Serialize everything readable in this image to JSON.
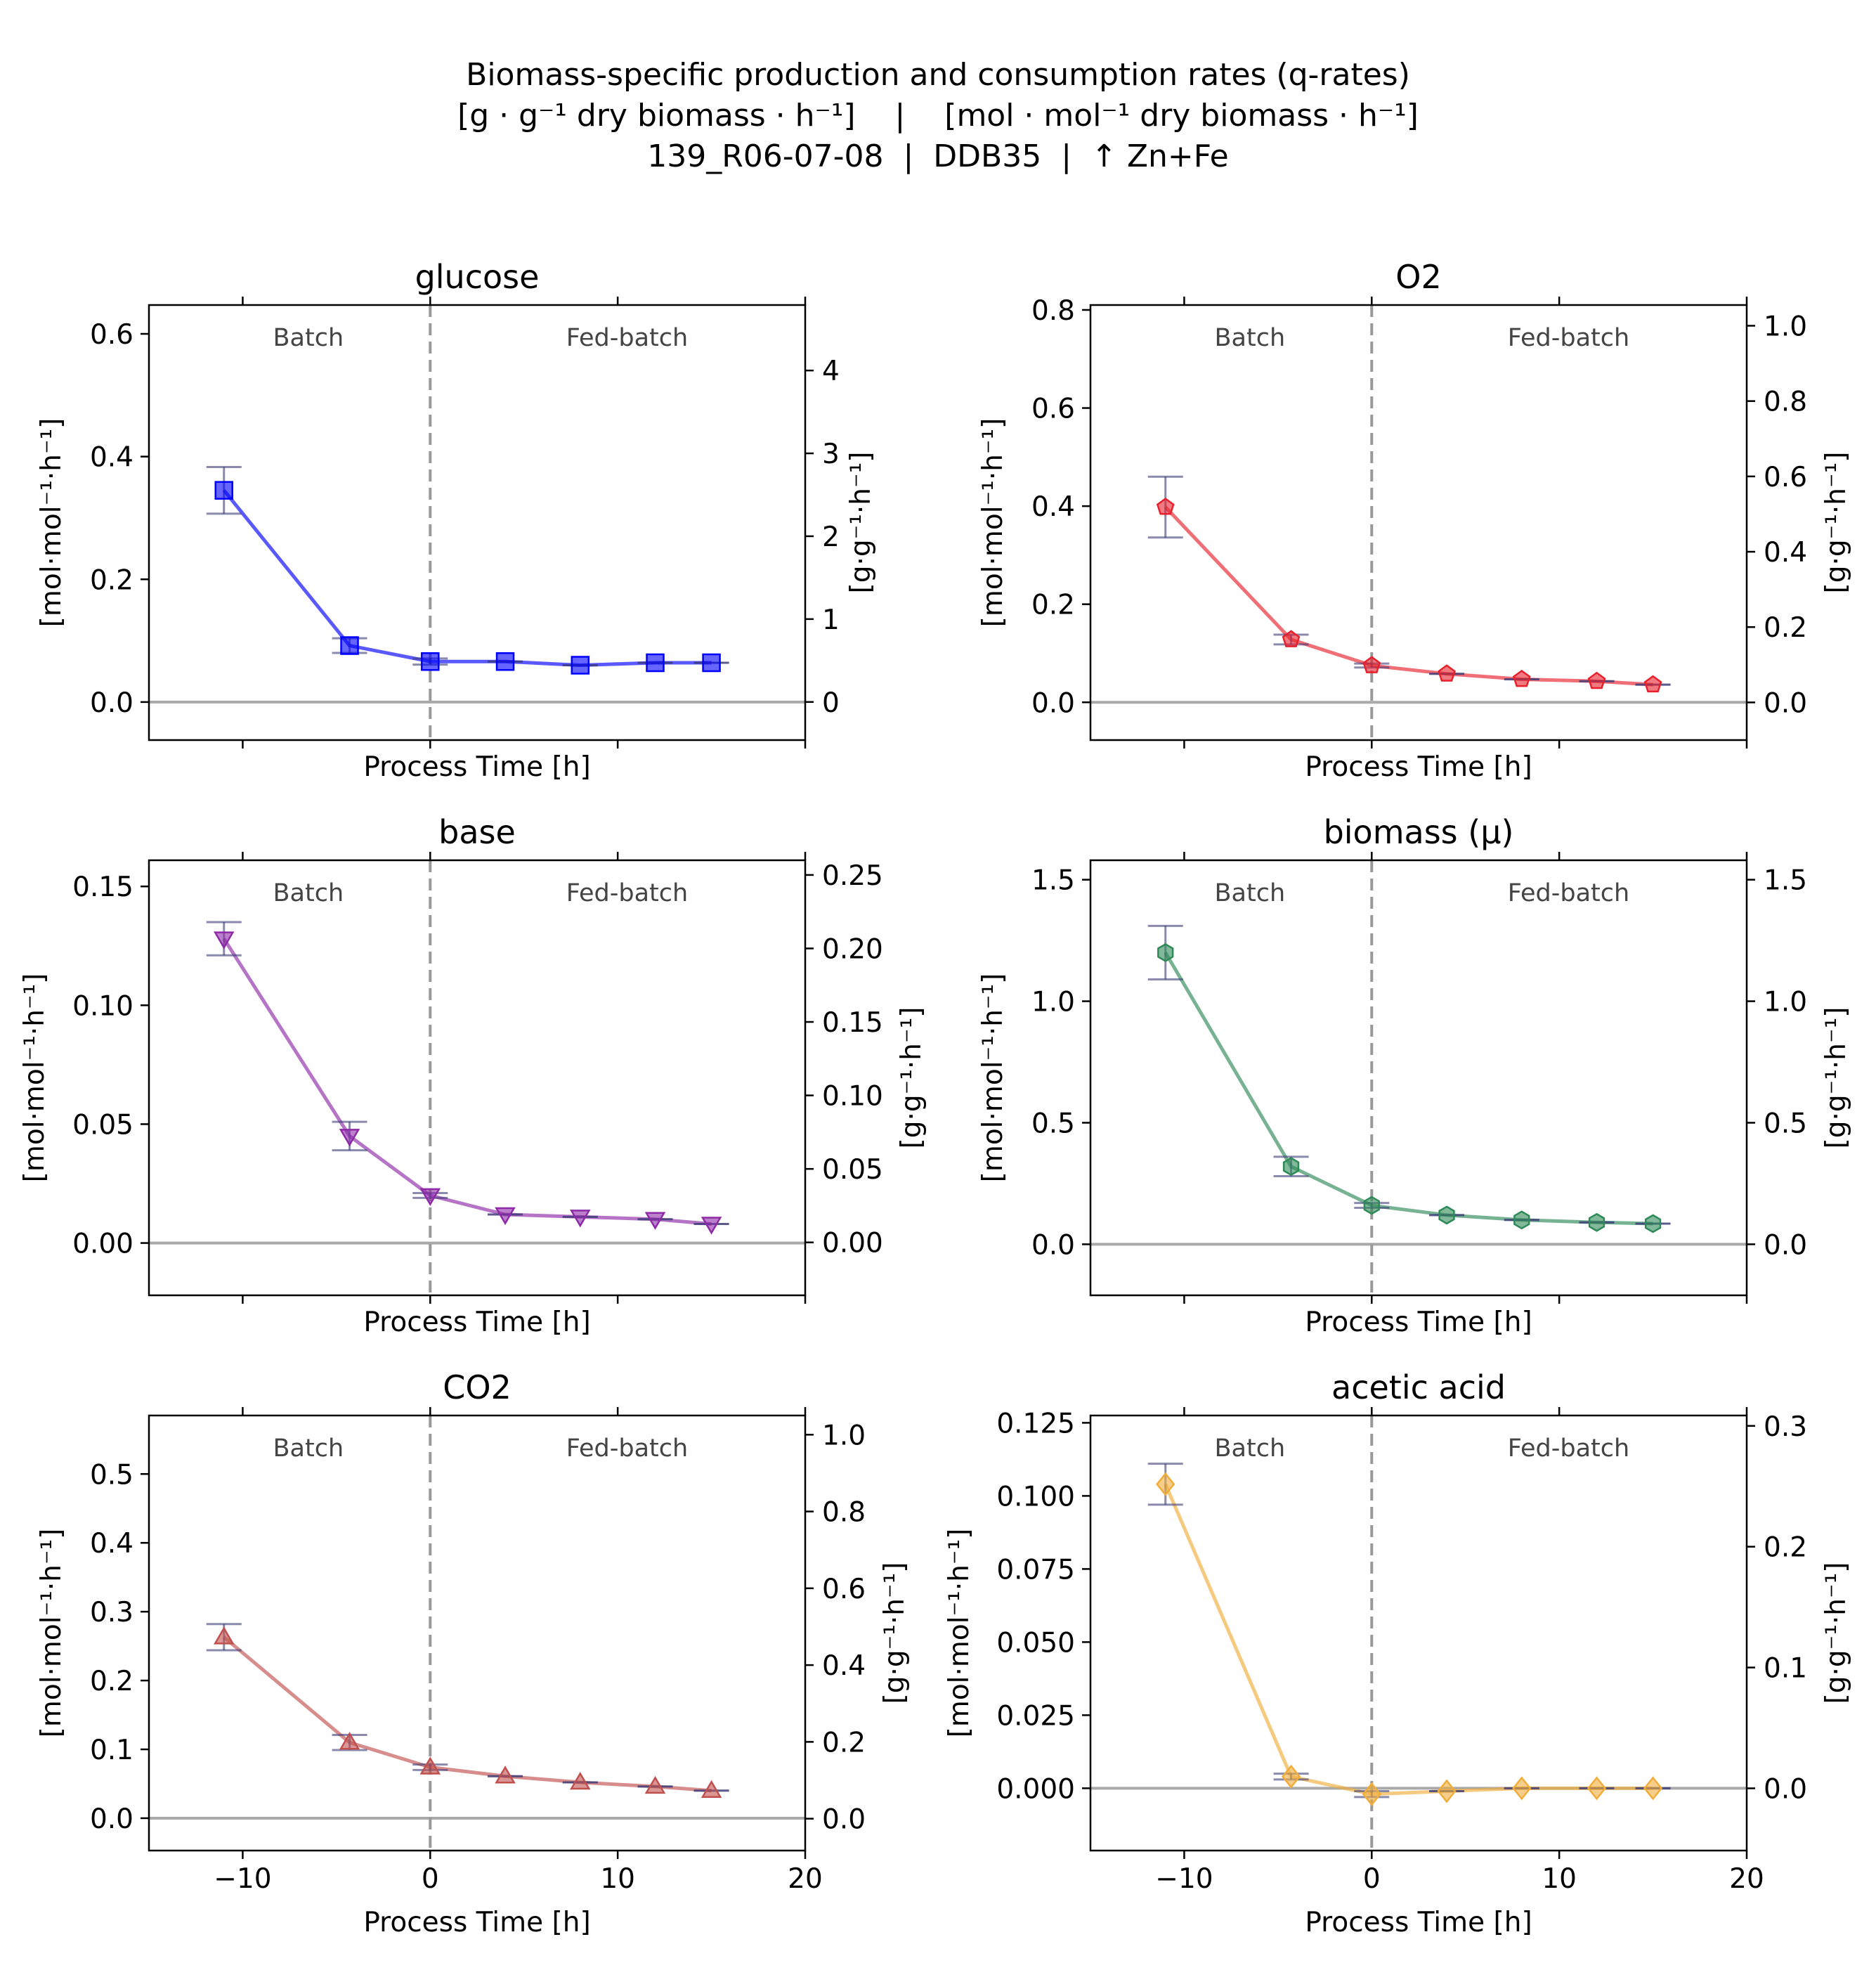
{
  "suptitle": {
    "line1": "Biomass-specific production and consumption rates (q-rates)",
    "line2": "[g · g⁻¹ dry biomass · h⁻¹]    |    [mol · mol⁻¹ dry biomass · h⁻¹]",
    "line3": "139_R06-07-08  |  DDB35  |  ↑ Zn+Fe"
  },
  "chart_data": [
    {
      "type": "line",
      "title": "glucose",
      "color": "#0000ff",
      "marker": "square",
      "xlabel": "Process Time [h]",
      "ylabel": "[mol·mol⁻¹·h⁻¹]",
      "ylabel_right": "[g·g⁻¹·h⁻¹]",
      "phase_labels": [
        "Batch",
        "Fed-batch"
      ],
      "xlim": [
        -15,
        20
      ],
      "xticks": [
        -10,
        0,
        10,
        20
      ],
      "show_xticklabels": false,
      "ylim": [
        -0.062,
        0.647
      ],
      "yticks": [
        0.0,
        0.2,
        0.4,
        0.6
      ],
      "yticklabels": [
        "0.0",
        "0.2",
        "0.4",
        "0.6"
      ],
      "ylim_right": [
        -0.46,
        4.79
      ],
      "yticks_right": [
        0,
        1,
        2,
        3,
        4
      ],
      "yticklabels_right": [
        "0",
        "1",
        "2",
        "3",
        "4"
      ],
      "x": [
        -11,
        -4.3,
        0,
        4,
        8,
        12,
        15
      ],
      "y": [
        0.345,
        0.092,
        0.066,
        0.066,
        0.06,
        0.064,
        0.064
      ],
      "yerr": [
        0.038,
        0.012,
        0.005,
        0.0,
        0.0,
        0.0,
        0.0
      ]
    },
    {
      "type": "line",
      "title": "O2",
      "color": "#e8202c",
      "marker": "pentagon",
      "xlabel": "Process Time [h]",
      "ylabel": "[mol·mol⁻¹·h⁻¹]",
      "ylabel_right": "[g·g⁻¹·h⁻¹]",
      "phase_labels": [
        "Batch",
        "Fed-batch"
      ],
      "xlim": [
        -15,
        20
      ],
      "xticks": [
        -10,
        0,
        10,
        20
      ],
      "show_xticklabels": false,
      "ylim": [
        -0.077,
        0.81
      ],
      "yticks": [
        0.0,
        0.2,
        0.4,
        0.6,
        0.8
      ],
      "yticklabels": [
        "0.0",
        "0.2",
        "0.4",
        "0.6",
        "0.8"
      ],
      "ylim_right": [
        -0.1,
        1.055
      ],
      "yticks_right": [
        0.0,
        0.2,
        0.4,
        0.6,
        0.8,
        1.0
      ],
      "yticklabels_right": [
        "0.0",
        "0.2",
        "0.4",
        "0.6",
        "0.8",
        "1.0"
      ],
      "x": [
        -11,
        -4.3,
        0,
        4,
        8,
        12,
        15
      ],
      "y": [
        0.398,
        0.128,
        0.075,
        0.058,
        0.047,
        0.043,
        0.036
      ],
      "yerr": [
        0.062,
        0.01,
        0.004,
        0.0,
        0.0,
        0.0,
        0.0
      ]
    },
    {
      "type": "line",
      "title": "base",
      "color": "#8e2aa8",
      "marker": "triangle-down",
      "xlabel": "Process Time [h]",
      "ylabel": "[mol·mol⁻¹·h⁻¹]",
      "ylabel_right": "[g·g⁻¹·h⁻¹]",
      "phase_labels": [
        "Batch",
        "Fed-batch"
      ],
      "xlim": [
        -15,
        20
      ],
      "xticks": [
        -10,
        0,
        10,
        20
      ],
      "show_xticklabels": false,
      "ylim": [
        -0.022,
        0.161
      ],
      "yticks": [
        0.0,
        0.05,
        0.1,
        0.15
      ],
      "yticklabels": [
        "0.00",
        "0.05",
        "0.10",
        "0.15"
      ],
      "ylim_right": [
        -0.036,
        0.26
      ],
      "yticks_right": [
        0.0,
        0.05,
        0.1,
        0.15,
        0.2,
        0.25
      ],
      "yticklabels_right": [
        "0.00",
        "0.05",
        "0.10",
        "0.15",
        "0.20",
        "0.25"
      ],
      "x": [
        -11,
        -4.3,
        0,
        4,
        8,
        12,
        15
      ],
      "y": [
        0.128,
        0.045,
        0.02,
        0.012,
        0.011,
        0.01,
        0.008
      ],
      "yerr": [
        0.007,
        0.006,
        0.001,
        0.0,
        0.0,
        0.0,
        0.0
      ]
    },
    {
      "type": "line",
      "title": "biomass (µ)",
      "color": "#2e8b57",
      "marker": "hexagon",
      "xlabel": "Process Time [h]",
      "ylabel": "[mol·mol⁻¹·h⁻¹]",
      "ylabel_right": "[g·g⁻¹·h⁻¹]",
      "phase_labels": [
        "Batch",
        "Fed-batch"
      ],
      "xlim": [
        -15,
        20
      ],
      "xticks": [
        -10,
        0,
        10,
        20
      ],
      "show_xticklabels": false,
      "ylim": [
        -0.21,
        1.58
      ],
      "yticks": [
        0.0,
        0.5,
        1.0,
        1.5
      ],
      "yticklabels": [
        "0.0",
        "0.5",
        "1.0",
        "1.5"
      ],
      "ylim_right": [
        -0.21,
        1.58
      ],
      "yticks_right": [
        0.0,
        0.5,
        1.0,
        1.5
      ],
      "yticklabels_right": [
        "0.0",
        "0.5",
        "1.0",
        "1.5"
      ],
      "x": [
        -11,
        -4.3,
        0,
        4,
        8,
        12,
        15
      ],
      "y": [
        1.2,
        0.32,
        0.16,
        0.12,
        0.1,
        0.09,
        0.085
      ],
      "yerr": [
        0.11,
        0.04,
        0.01,
        0.0,
        0.0,
        0.0,
        0.0
      ]
    },
    {
      "type": "line",
      "title": "CO2",
      "color": "#c0504d",
      "marker": "triangle-up",
      "xlabel": "Process Time [h]",
      "ylabel": "[mol·mol⁻¹·h⁻¹]",
      "ylabel_right": "[g·g⁻¹·h⁻¹]",
      "phase_labels": [
        "Batch",
        "Fed-batch"
      ],
      "xlim": [
        -15,
        20
      ],
      "xticks": [
        -10,
        0,
        10,
        20
      ],
      "show_xticklabels": true,
      "ylim": [
        -0.047,
        0.585
      ],
      "yticks": [
        0.0,
        0.1,
        0.2,
        0.3,
        0.4,
        0.5
      ],
      "yticklabels": [
        "0.0",
        "0.1",
        "0.2",
        "0.3",
        "0.4",
        "0.5"
      ],
      "ylim_right": [
        -0.083,
        1.05
      ],
      "yticks_right": [
        0.0,
        0.2,
        0.4,
        0.6,
        0.8,
        1.0
      ],
      "yticklabels_right": [
        "0.0",
        "0.2",
        "0.4",
        "0.6",
        "0.8",
        "1.0"
      ],
      "x": [
        -11,
        -4.3,
        0,
        4,
        8,
        12,
        15
      ],
      "y": [
        0.263,
        0.11,
        0.074,
        0.061,
        0.052,
        0.046,
        0.04
      ],
      "yerr": [
        0.019,
        0.011,
        0.004,
        0.0,
        0.0,
        0.0,
        0.0
      ]
    },
    {
      "type": "line",
      "title": "acetic acid",
      "color": "#f0ad3a",
      "marker": "diamond",
      "xlabel": "Process Time [h]",
      "ylabel": "[mol·mol⁻¹·h⁻¹]",
      "ylabel_right": "[g·g⁻¹·h⁻¹]",
      "phase_labels": [
        "Batch",
        "Fed-batch"
      ],
      "xlim": [
        -15,
        20
      ],
      "xticks": [
        -10,
        0,
        10,
        20
      ],
      "show_xticklabels": true,
      "ylim": [
        -0.0213,
        0.1275
      ],
      "yticks": [
        0.0,
        0.025,
        0.05,
        0.075,
        0.1,
        0.125
      ],
      "yticklabels": [
        "0.000",
        "0.025",
        "0.050",
        "0.075",
        "0.100",
        "0.125"
      ],
      "ylim_right": [
        -0.0515,
        0.3086
      ],
      "yticks_right": [
        0.0,
        0.1,
        0.2,
        0.3
      ],
      "yticklabels_right": [
        "0.0",
        "0.1",
        "0.2",
        "0.3"
      ],
      "x": [
        -11,
        -4.3,
        0,
        4,
        8,
        12,
        15
      ],
      "y": [
        0.104,
        0.004,
        -0.002,
        -0.001,
        0.0,
        0.0,
        0.0
      ],
      "yerr": [
        0.007,
        0.001,
        0.001,
        0.0,
        0.0,
        0.0,
        0.0
      ]
    }
  ]
}
